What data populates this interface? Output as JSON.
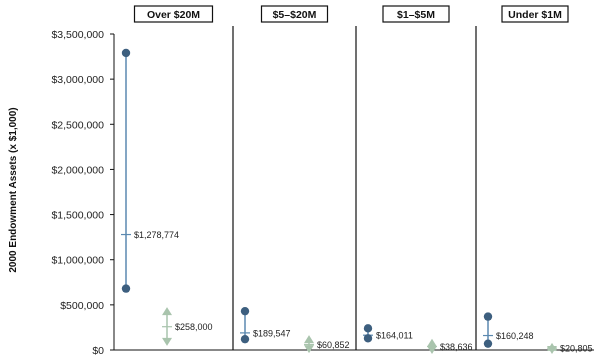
{
  "chart_data": {
    "type": "range-plot",
    "ylabel": "2000 Endowment Assets (x $1,000)",
    "ylim": [
      0,
      3500000
    ],
    "yticks": [
      0,
      500000,
      1000000,
      1500000,
      2000000,
      2500000,
      3000000,
      3500000
    ],
    "ytick_labels": [
      "$0",
      "$500,000",
      "$1,000,000",
      "$1,500,000",
      "$2,000,000",
      "$2,500,000",
      "$3,000,000",
      "$3,500,000"
    ],
    "grid": false,
    "colors": {
      "primary": "#3d5f7f",
      "primary_line": "#5b89b0",
      "secondary": "#a9c4ad",
      "text": "#222222"
    },
    "panels": [
      {
        "title": "Over $20M",
        "primary": {
          "high": 3290000,
          "low": 680000,
          "mid": 1278774,
          "label": "$1,278,774"
        },
        "secondary": {
          "high": 430000,
          "low": 90000,
          "mid": 258000,
          "label": "$258,000"
        }
      },
      {
        "title": "$5–$20M",
        "primary": {
          "high": 430000,
          "low": 120000,
          "mid": 189547,
          "label": "$189,547"
        },
        "secondary": {
          "high": 120000,
          "low": 10000,
          "mid": 60852,
          "label": "$60,852"
        }
      },
      {
        "title": "$1–$5M",
        "primary": {
          "high": 240000,
          "low": 130000,
          "mid": 164011,
          "label": "$164,011"
        },
        "secondary": {
          "high": 80000,
          "low": 0,
          "mid": 38636,
          "label": "$38,636"
        }
      },
      {
        "title": "Under $1M",
        "primary": {
          "high": 370000,
          "low": 70000,
          "mid": 160248,
          "label": "$160,248"
        },
        "secondary": {
          "high": 35000,
          "low": 0,
          "mid": 20805,
          "label": "$20,805"
        }
      }
    ]
  }
}
